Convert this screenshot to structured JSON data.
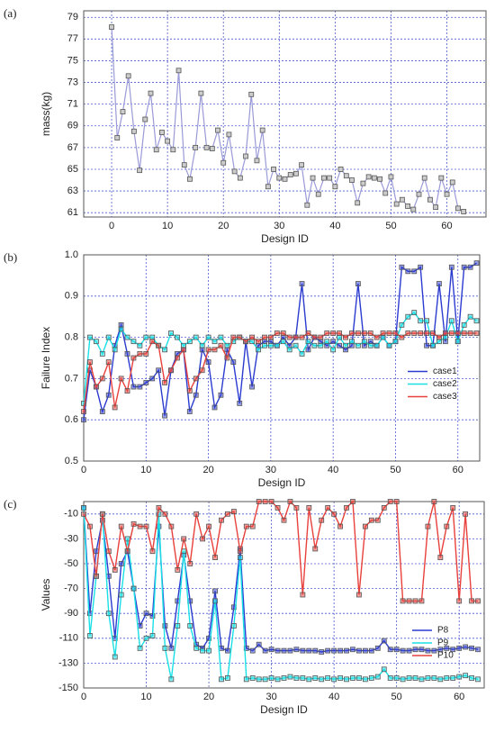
{
  "chart_data": [
    {
      "type": "line",
      "panel_label": "(a)",
      "xlabel": "Design ID",
      "ylabel": "mass(kg)",
      "grid": true,
      "color": "#9a9ad8",
      "x": [
        0,
        1,
        2,
        3,
        4,
        5,
        6,
        7,
        8,
        9,
        10,
        11,
        12,
        13,
        14,
        15,
        16,
        17,
        18,
        19,
        20,
        21,
        22,
        23,
        24,
        25,
        26,
        27,
        28,
        29,
        30,
        31,
        32,
        33,
        34,
        35,
        36,
        37,
        38,
        39,
        40,
        41,
        42,
        43,
        44,
        45,
        46,
        47,
        48,
        49,
        50,
        51,
        52,
        53,
        54,
        55,
        56,
        57,
        58,
        59,
        60,
        61,
        62,
        63
      ],
      "values": [
        78.1,
        67.9,
        70.3,
        73.6,
        68.5,
        64.9,
        69.6,
        72.0,
        66.8,
        68.4,
        67.6,
        66.8,
        74.1,
        65.4,
        64.1,
        67.0,
        72.0,
        67.0,
        66.9,
        68.6,
        65.6,
        68.2,
        64.8,
        64.2,
        66.2,
        71.9,
        65.8,
        68.6,
        63.4,
        65.0,
        64.2,
        64.1,
        64.5,
        64.6,
        65.4,
        61.7,
        64.2,
        62.7,
        64.2,
        64.2,
        63.4,
        65.0,
        64.4,
        64.0,
        61.9,
        63.7,
        64.3,
        64.2,
        64.1,
        62.8,
        64.3,
        61.8,
        62.2,
        61.6,
        61.3,
        62.7,
        64.2,
        62.2,
        61.5,
        64.2,
        62.7,
        63.8,
        61.4,
        61.1
      ],
      "xlim": [
        -5,
        67
      ],
      "ylim": [
        60.6,
        79.6
      ],
      "xticks": [
        0,
        10,
        20,
        30,
        40,
        50,
        60
      ],
      "yticks": [
        61,
        63,
        65,
        67,
        69,
        71,
        73,
        75,
        77,
        79
      ]
    },
    {
      "type": "line",
      "panel_label": "(b)",
      "xlabel": "Design ID",
      "ylabel": "Failure Index",
      "grid": true,
      "legend": "center right",
      "x": [
        0,
        1,
        2,
        3,
        4,
        5,
        6,
        7,
        8,
        9,
        10,
        11,
        12,
        13,
        14,
        15,
        16,
        17,
        18,
        19,
        20,
        21,
        22,
        23,
        24,
        25,
        26,
        27,
        28,
        29,
        30,
        31,
        32,
        33,
        34,
        35,
        36,
        37,
        38,
        39,
        40,
        41,
        42,
        43,
        44,
        45,
        46,
        47,
        48,
        49,
        50,
        51,
        52,
        53,
        54,
        55,
        56,
        57,
        58,
        59,
        60,
        61,
        62,
        63
      ],
      "series": [
        {
          "name": "case1",
          "color": "#2b3bd0",
          "values": [
            0.6,
            0.72,
            0.68,
            0.62,
            0.66,
            0.78,
            0.83,
            0.76,
            0.68,
            0.68,
            0.69,
            0.7,
            0.72,
            0.61,
            0.72,
            0.76,
            0.77,
            0.62,
            0.66,
            0.77,
            0.74,
            0.63,
            0.66,
            0.77,
            0.74,
            0.64,
            0.79,
            0.68,
            0.78,
            0.79,
            0.79,
            0.78,
            0.8,
            0.78,
            0.8,
            0.93,
            0.77,
            0.8,
            0.79,
            0.78,
            0.79,
            0.78,
            0.77,
            0.78,
            0.93,
            0.78,
            0.79,
            0.78,
            0.8,
            0.78,
            0.79,
            0.97,
            0.96,
            0.96,
            0.97,
            0.78,
            0.78,
            0.93,
            0.79,
            0.97,
            0.79,
            0.97,
            0.97,
            0.98
          ]
        },
        {
          "name": "case2",
          "color": "#19e0e6",
          "values": [
            0.64,
            0.8,
            0.79,
            0.76,
            0.8,
            0.77,
            0.82,
            0.8,
            0.79,
            0.78,
            0.8,
            0.8,
            0.78,
            0.77,
            0.81,
            0.8,
            0.78,
            0.79,
            0.8,
            0.78,
            0.8,
            0.79,
            0.8,
            0.78,
            0.79,
            0.8,
            0.79,
            0.79,
            0.77,
            0.78,
            0.78,
            0.78,
            0.79,
            0.77,
            0.78,
            0.76,
            0.79,
            0.78,
            0.78,
            0.79,
            0.77,
            0.8,
            0.78,
            0.79,
            0.78,
            0.79,
            0.78,
            0.78,
            0.8,
            0.78,
            0.79,
            0.83,
            0.85,
            0.86,
            0.84,
            0.84,
            0.78,
            0.79,
            0.8,
            0.84,
            0.79,
            0.83,
            0.85,
            0.84
          ]
        },
        {
          "name": "case3",
          "color": "#e8413c",
          "values": [
            0.62,
            0.74,
            0.68,
            0.7,
            0.74,
            0.63,
            0.7,
            0.67,
            0.75,
            0.76,
            0.76,
            0.79,
            0.78,
            0.69,
            0.72,
            0.75,
            0.77,
            0.67,
            0.7,
            0.72,
            0.77,
            0.77,
            0.78,
            0.75,
            0.8,
            0.8,
            0.79,
            0.8,
            0.79,
            0.8,
            0.8,
            0.81,
            0.81,
            0.8,
            0.8,
            0.8,
            0.81,
            0.8,
            0.8,
            0.81,
            0.81,
            0.81,
            0.8,
            0.81,
            0.81,
            0.81,
            0.81,
            0.8,
            0.81,
            0.81,
            0.81,
            0.8,
            0.81,
            0.81,
            0.81,
            0.81,
            0.81,
            0.8,
            0.81,
            0.81,
            0.81,
            0.81,
            0.81,
            0.81
          ]
        }
      ],
      "xlim": [
        0,
        63.5
      ],
      "ylim": [
        0.5,
        1
      ],
      "xticks": [
        0,
        10,
        20,
        30,
        40,
        50,
        60
      ],
      "yticks": [
        0.5,
        0.6,
        0.7,
        0.8,
        0.9,
        {
          "value": 1,
          "label": "1.0"
        }
      ]
    },
    {
      "type": "line",
      "panel_label": "(c)",
      "xlabel": "Design ID",
      "ylabel": "Values",
      "grid": true,
      "legend": "lower right",
      "x": [
        0,
        1,
        2,
        3,
        4,
        5,
        6,
        7,
        8,
        9,
        10,
        11,
        12,
        13,
        14,
        15,
        16,
        17,
        18,
        19,
        20,
        21,
        22,
        23,
        24,
        25,
        26,
        27,
        28,
        29,
        30,
        31,
        32,
        33,
        34,
        35,
        36,
        37,
        38,
        39,
        40,
        41,
        42,
        43,
        44,
        45,
        46,
        47,
        48,
        49,
        50,
        51,
        52,
        53,
        54,
        55,
        56,
        57,
        58,
        59,
        60,
        61,
        62,
        63
      ],
      "series": [
        {
          "name": "P8",
          "color": "#2b3bd0",
          "values": [
            -5,
            -90,
            -40,
            -15,
            -60,
            -110,
            -50,
            -40,
            -70,
            -100,
            -90,
            -92,
            -20,
            -100,
            -118,
            -80,
            -43,
            -80,
            -115,
            -118,
            -110,
            -72,
            -118,
            -120,
            -85,
            -38,
            -118,
            -120,
            -115,
            -120,
            -119,
            -120,
            -120,
            -120,
            -119,
            -120,
            -120,
            -120,
            -121,
            -120,
            -120,
            -120,
            -120,
            -119,
            -120,
            -120,
            -120,
            -118,
            -112,
            -119,
            -119,
            -120,
            -120,
            -119,
            -119,
            -120,
            -120,
            -119,
            -118,
            -119,
            -118,
            -117,
            -118,
            -119
          ]
        },
        {
          "name": "P9",
          "color": "#19e0e6",
          "values": [
            -5,
            -108,
            -60,
            -10,
            -90,
            -125,
            -75,
            -30,
            -70,
            -118,
            -110,
            -108,
            -10,
            -118,
            -143,
            -100,
            -40,
            -100,
            -118,
            -120,
            -120,
            -80,
            -143,
            -142,
            -100,
            -45,
            -143,
            -142,
            -143,
            -143,
            -142,
            -143,
            -142,
            -141,
            -142,
            -142,
            -143,
            -142,
            -143,
            -142,
            -143,
            -142,
            -143,
            -142,
            -142,
            -143,
            -142,
            -141,
            -135,
            -142,
            -142,
            -143,
            -142,
            -142,
            -143,
            -142,
            -142,
            -143,
            -142,
            -142,
            -141,
            -140,
            -142,
            -143
          ]
        },
        {
          "name": "P10",
          "color": "#e8413c",
          "values": [
            -10,
            -20,
            -60,
            -10,
            -40,
            -55,
            -20,
            -40,
            -18,
            -20,
            -20,
            -40,
            -5,
            -10,
            -20,
            -55,
            -30,
            -50,
            -10,
            -30,
            -20,
            -45,
            -15,
            -10,
            -8,
            -40,
            -20,
            -20,
            0,
            0,
            0,
            -5,
            -15,
            0,
            -5,
            -75,
            -5,
            -38,
            -15,
            -5,
            -10,
            -20,
            -5,
            0,
            -75,
            -20,
            -15,
            -15,
            -5,
            0,
            0,
            -80,
            -80,
            -80,
            -80,
            -20,
            0,
            -45,
            -20,
            -5,
            -80,
            -10,
            -80,
            -80
          ]
        }
      ],
      "xlim": [
        0,
        64
      ],
      "ylim": [
        -150,
        0
      ],
      "xticks": [
        0,
        10,
        20,
        30,
        40,
        50,
        60
      ],
      "yticks": [
        -10,
        -30,
        -50,
        -70,
        -90,
        -110,
        -130,
        -150
      ]
    }
  ]
}
